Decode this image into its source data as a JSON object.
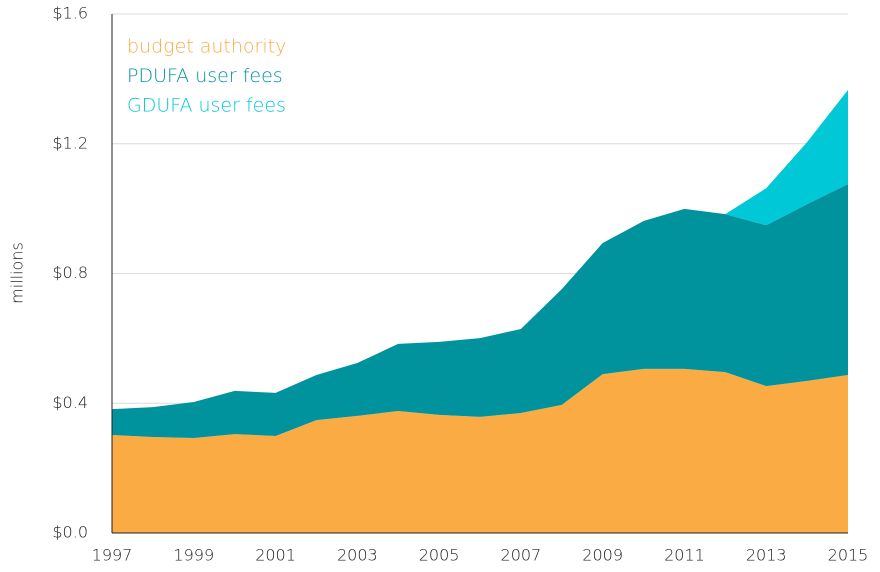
{
  "chart_data": {
    "type": "stacked_area",
    "y_label": "millions",
    "x": [
      1997,
      1998,
      1999,
      2000,
      2001,
      2002,
      2003,
      2004,
      2005,
      2006,
      2007,
      2008,
      2009,
      2010,
      2011,
      2012,
      2013,
      2014,
      2015
    ],
    "xlim": [
      1997,
      2015
    ],
    "xticks": [
      1997,
      1999,
      2001,
      2003,
      2005,
      2007,
      2009,
      2011,
      2013,
      2015
    ],
    "ylim": [
      0,
      1.6
    ],
    "yticks": [
      {
        "value": 0,
        "label": "$0.0"
      },
      {
        "value": 0.4,
        "label": "$0.4"
      },
      {
        "value": 0.8,
        "label": "$0.8"
      },
      {
        "value": 1.2,
        "label": "$1.2"
      },
      {
        "value": 1.6,
        "label": "$1.6"
      }
    ],
    "grid": true,
    "legend": "upper left",
    "series": [
      {
        "name": "budget authority",
        "color": "#fbab44",
        "values": [
          0.302,
          0.296,
          0.293,
          0.305,
          0.299,
          0.348,
          0.361,
          0.376,
          0.364,
          0.358,
          0.37,
          0.395,
          0.49,
          0.506,
          0.506,
          0.496,
          0.453,
          0.469,
          0.487
        ]
      },
      {
        "name": "PDUFA user fees",
        "color": "#00939e",
        "values": [
          0.08,
          0.092,
          0.111,
          0.133,
          0.133,
          0.139,
          0.163,
          0.207,
          0.225,
          0.243,
          0.259,
          0.357,
          0.404,
          0.456,
          0.493,
          0.487,
          0.496,
          0.545,
          0.589
        ]
      },
      {
        "name": "GDUFA user fees",
        "color": "#00c8d7",
        "values": [
          null,
          null,
          null,
          null,
          null,
          null,
          null,
          null,
          null,
          null,
          null,
          null,
          null,
          null,
          null,
          0,
          0.114,
          0.191,
          0.29
        ]
      }
    ]
  }
}
